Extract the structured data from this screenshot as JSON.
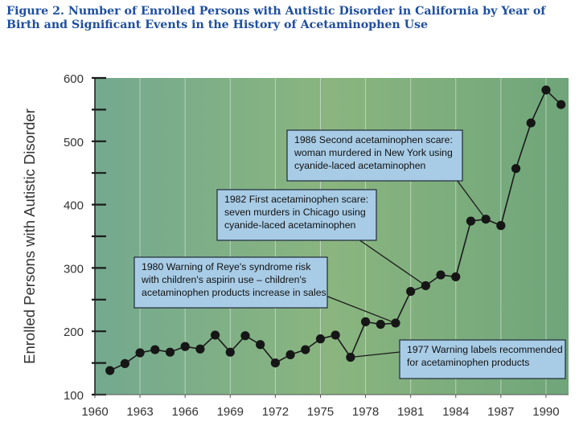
{
  "figure": {
    "title": "Figure 2. Number of Enrolled Persons with Autistic Disorder in California by Year of Birth and Significant Events in the History of Acetaminophen Use"
  },
  "colors": {
    "title": "#1e4fa0",
    "plot_bg_start": "#74a98f",
    "plot_bg_mid": "#8ab57f",
    "plot_bg_end": "#6fa57a",
    "callout_fill": "#a8cce6",
    "marker": "#161616"
  },
  "chart_data": {
    "type": "line",
    "title": "Figure 2. Number of Enrolled Persons with Autistic Disorder in California by Year of Birth and Significant Events in the History of Acetaminophen Use",
    "xlabel": "",
    "ylabel": "Enrolled Persons with Autistic Disorder",
    "xlim": [
      1960,
      1991.5
    ],
    "ylim": [
      100,
      600
    ],
    "x_ticks": [
      "1960",
      "1963",
      "1966",
      "1969",
      "1972",
      "1975",
      "1978",
      "1981",
      "1984",
      "1987",
      "1990"
    ],
    "y_ticks": [
      "100",
      "200",
      "300",
      "400",
      "500",
      "600"
    ],
    "grid": "vertical lines at labeled years",
    "series": [
      {
        "x": [
          1961,
          1962,
          1963,
          1964,
          1965,
          1966,
          1967,
          1968,
          1969,
          1970,
          1971,
          1972,
          1973,
          1974,
          1975,
          1976,
          1977,
          1978,
          1979,
          1980,
          1981,
          1982,
          1983,
          1984,
          1985,
          1986,
          1987,
          1988,
          1989,
          1990,
          1991
        ],
        "y": [
          138,
          149,
          166,
          171,
          167,
          176,
          172,
          194,
          167,
          193,
          179,
          150,
          163,
          171,
          188,
          194,
          159,
          215,
          211,
          213,
          263,
          272,
          289,
          286,
          374,
          377,
          367,
          457,
          529,
          581,
          558
        ]
      }
    ],
    "annotations": [
      {
        "id": "a1986",
        "lines": [
          "1986 Second acetaminophen scare:",
          "woman murdered in New York using",
          "cyanide-laced acetaminophen"
        ],
        "target": [
          1986,
          377
        ]
      },
      {
        "id": "a1982",
        "lines": [
          "1982 First acetaminophen scare:",
          "seven murders in Chicago using",
          "cyanide-laced acetaminophen"
        ],
        "target": [
          1982,
          272
        ]
      },
      {
        "id": "a1980",
        "lines": [
          "1980 Warning of Reye's syndrome risk",
          "with children's aspirin use – children's",
          "acetaminophen products increase in sales"
        ],
        "target": [
          1980,
          213
        ]
      },
      {
        "id": "a1977",
        "lines": [
          "1977 Warning labels recommended",
          "for acetaminophen products"
        ],
        "target": [
          1977,
          159
        ]
      }
    ]
  }
}
